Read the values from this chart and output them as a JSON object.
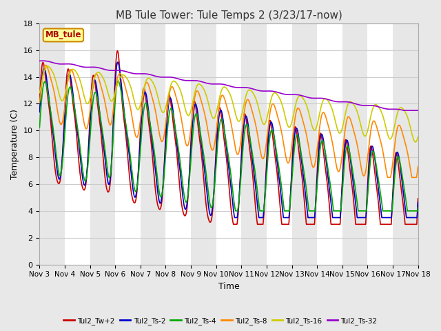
{
  "title": "MB Tule Tower: Tule Temps 2 (3/23/17-now)",
  "xlabel": "Time",
  "ylabel": "Temperature (C)",
  "ylim": [
    0,
    18
  ],
  "yticks": [
    0,
    2,
    4,
    6,
    8,
    10,
    12,
    14,
    16,
    18
  ],
  "xlim": [
    0,
    15
  ],
  "xtick_labels": [
    "Nov 3",
    "Nov 4",
    "Nov 5",
    "Nov 6",
    "Nov 7",
    "Nov 8",
    "Nov 9",
    "Nov 10",
    "Nov 11",
    "Nov 12",
    "Nov 13",
    "Nov 14",
    "Nov 15",
    "Nov 16",
    "Nov 17",
    "Nov 18"
  ],
  "xtick_positions": [
    0,
    1,
    2,
    3,
    4,
    5,
    6,
    7,
    8,
    9,
    10,
    11,
    12,
    13,
    14,
    15
  ],
  "series": {
    "Tul2_Tw+2": {
      "color": "#cc0000",
      "lw": 1.2
    },
    "Tul2_Ts-2": {
      "color": "#0000cc",
      "lw": 1.2
    },
    "Tul2_Ts-4": {
      "color": "#00aa00",
      "lw": 1.2
    },
    "Tul2_Ts-8": {
      "color": "#ff8800",
      "lw": 1.2
    },
    "Tul2_Ts-16": {
      "color": "#cccc00",
      "lw": 1.2
    },
    "Tul2_Ts-32": {
      "color": "#9900cc",
      "lw": 1.2
    }
  },
  "legend_label": "MB_tule",
  "bg_color": "#e8e8e8",
  "plot_bg_color": "#ffffff",
  "grid_color": "#cccccc",
  "title_fontsize": 11,
  "axis_fontsize": 9,
  "tick_fontsize": 8
}
